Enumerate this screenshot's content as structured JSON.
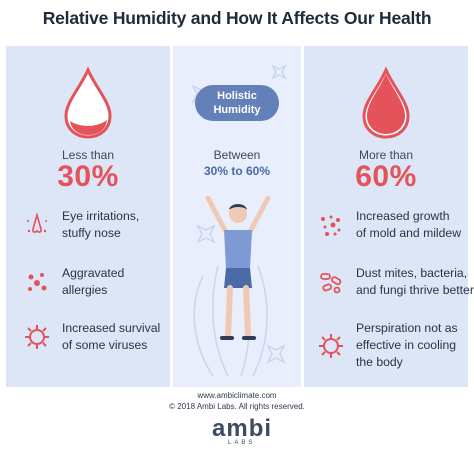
{
  "title": "Relative Humidity and How It Affects Our Health",
  "left": {
    "label": "Less than",
    "value": "30%",
    "items": [
      {
        "text1": "Eye irritations,",
        "text2": "stuffy nose",
        "icon": "nose-icon"
      },
      {
        "text1": "Aggravated",
        "text2": "allergies",
        "icon": "allergen-icon"
      },
      {
        "text1": "Increased survival",
        "text2": "of some viruses",
        "icon": "virus-icon"
      }
    ]
  },
  "middle": {
    "badge_line1": "Holistic",
    "badge_line2": "Humidity",
    "label": "Between",
    "range": "30% to 60%"
  },
  "right": {
    "label": "More than",
    "value": "60%",
    "items": [
      {
        "text1": "Increased growth",
        "text2": "of mold and mildew",
        "icon": "mold-icon"
      },
      {
        "text1": "Dust mites, bacteria,",
        "text2": "and fungi thrive better",
        "icon": "bacteria-icon"
      },
      {
        "text1": "Perspiration not as",
        "text2": "effective in cooling",
        "text3": "the body",
        "icon": "virus-icon"
      }
    ]
  },
  "footer": {
    "url": "www.ambiclimate.com",
    "copyright": "© 2018 Ambi Labs. All rights reserved.",
    "logo": "ambi",
    "logo_sub": "LABS"
  },
  "colors": {
    "accent": "#e4535a",
    "panel": "#dce6f7",
    "badge": "#6480b8"
  }
}
